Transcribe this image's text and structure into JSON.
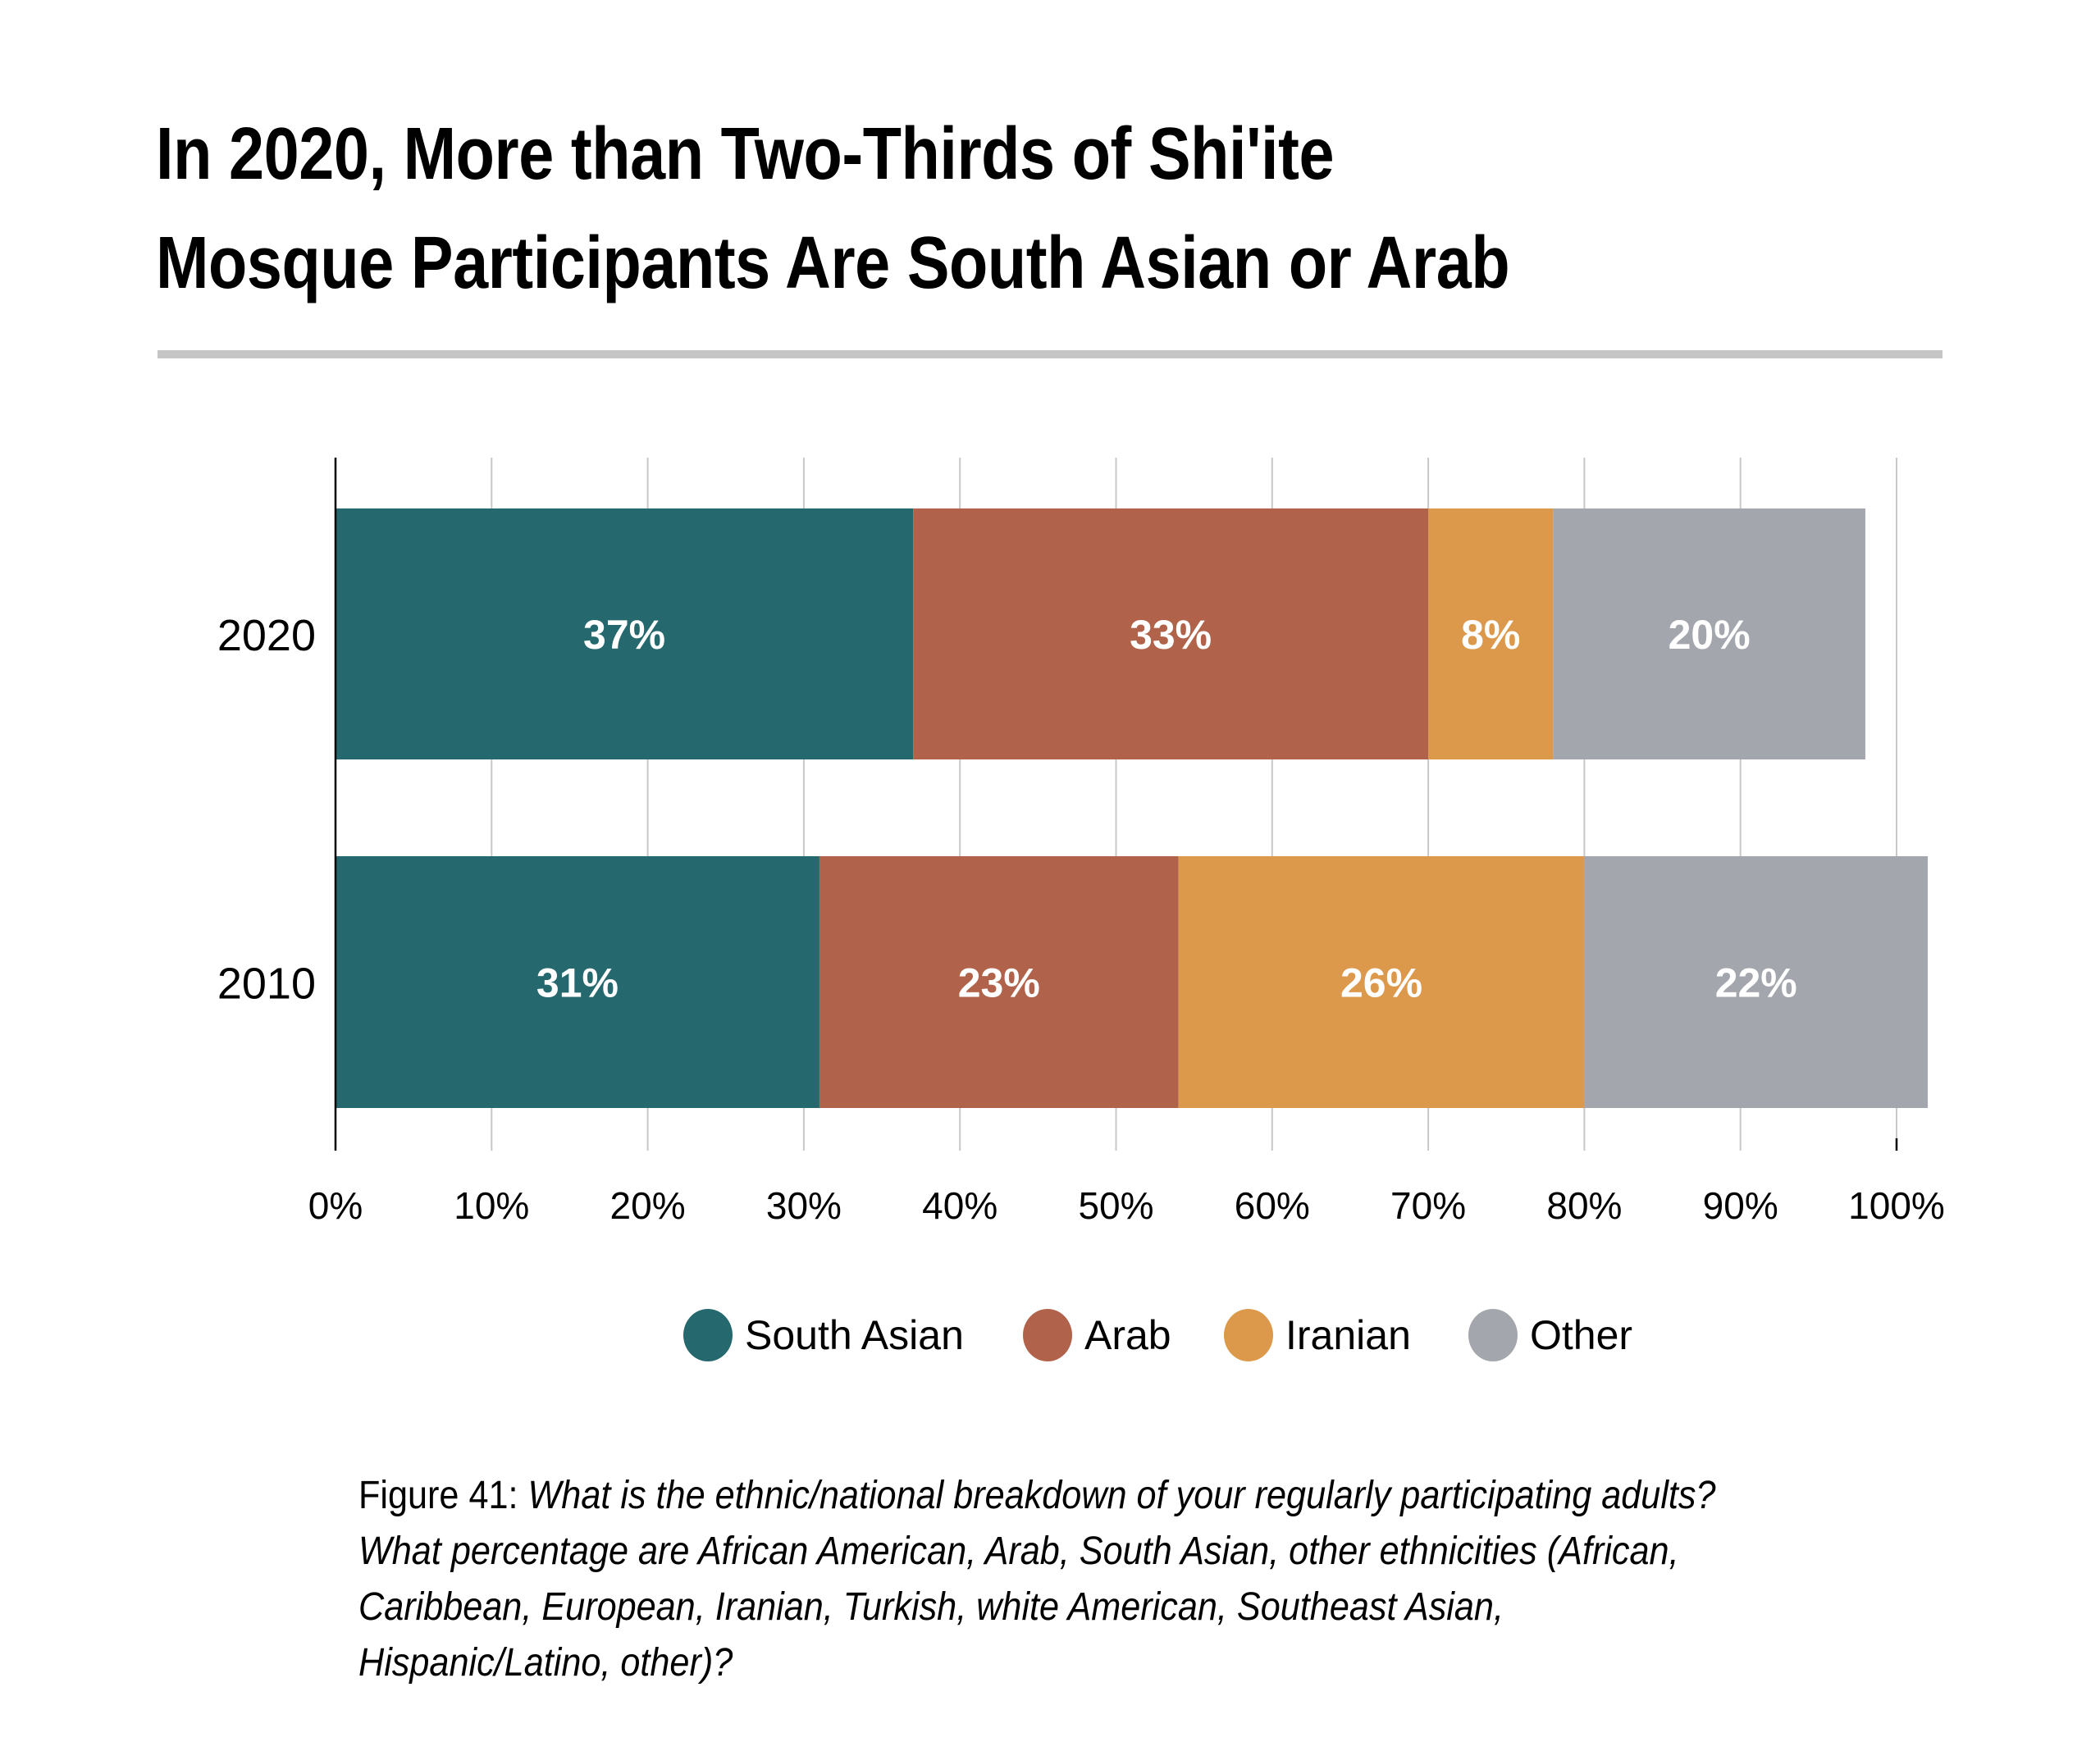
{
  "header": {
    "title_line1": "In 2020, More than Two-Thirds of Shi'ite",
    "title_line2": "Mosque Participants Are South Asian or Arab"
  },
  "caption": {
    "figure_label": "Figure 41:",
    "question": "What is the ethnic/national breakdown of your regularly participating adults? What percentage are African American, Arab, South Asian, other ethnicities (African, Caribbean, European, Iranian, Turkish, white American, Southeast Asian, Hispanic/Latino, other)?"
  },
  "chart_data": {
    "type": "bar",
    "orientation": "horizontal",
    "stacked": true,
    "title": "In 2020, More than Two-Thirds of Shi'ite Mosque Participants Are South Asian or Arab",
    "categories": [
      "2020",
      "2010"
    ],
    "series": [
      {
        "name": "South Asian",
        "color": "#25686d",
        "values": [
          37,
          31
        ]
      },
      {
        "name": "Arab",
        "color": "#b0634a",
        "values": [
          33,
          23
        ]
      },
      {
        "name": "Iranian",
        "color": "#dc984b",
        "values": [
          8,
          26
        ]
      },
      {
        "name": "Other",
        "color": "#a3a6ad",
        "values": [
          20,
          22
        ]
      }
    ],
    "data_labels": [
      [
        "37%",
        "33%",
        "8%",
        "20%"
      ],
      [
        "31%",
        "23%",
        "26%",
        "22%"
      ]
    ],
    "xlim": [
      0,
      100
    ],
    "x_ticks": [
      0,
      10,
      20,
      30,
      40,
      50,
      60,
      70,
      80,
      90,
      100
    ],
    "x_tick_labels": [
      "0%",
      "10%",
      "20%",
      "30%",
      "40%",
      "50%",
      "60%",
      "70%",
      "80%",
      "90%",
      "100%"
    ],
    "xlabel": "",
    "ylabel": "",
    "grid": true,
    "legend_position": "bottom-center",
    "legend": [
      "South Asian",
      "Arab",
      "Iranian",
      "Other"
    ]
  }
}
